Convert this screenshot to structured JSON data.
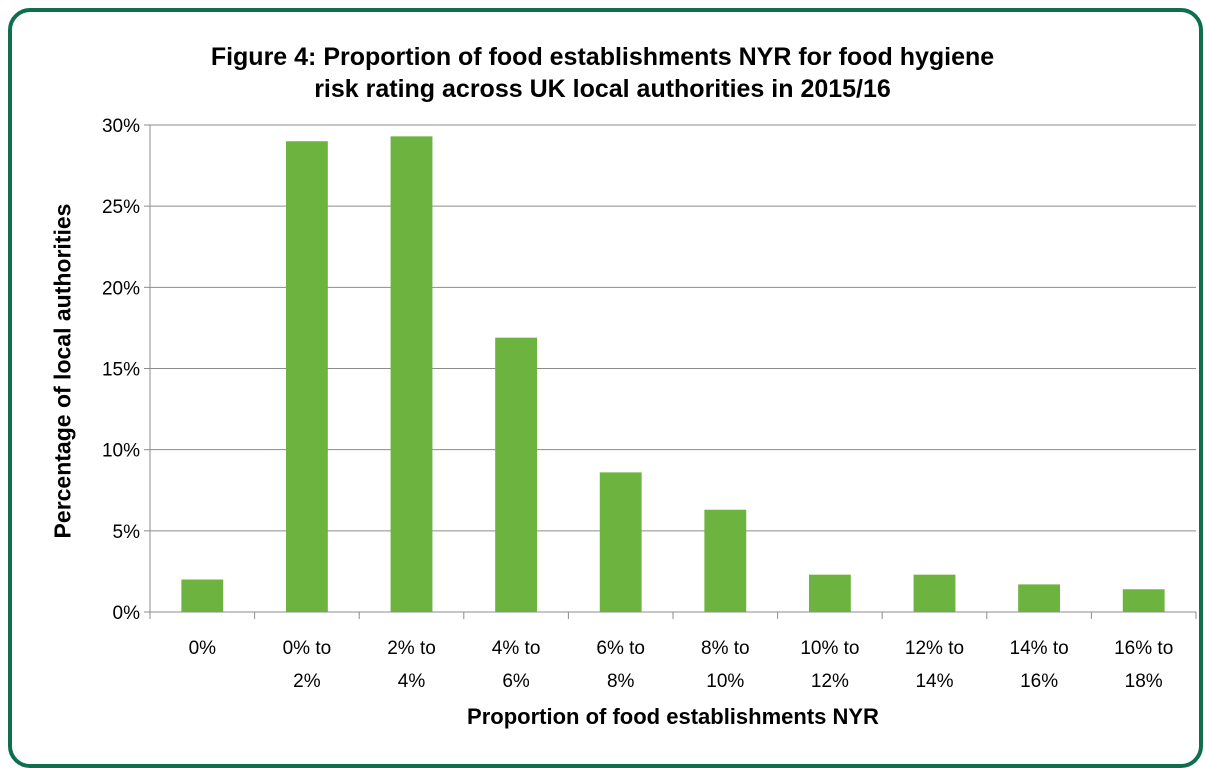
{
  "chart_data": {
    "type": "bar",
    "title_lines": [
      "Figure 4: Proportion of food establishments NYR for food hygiene",
      "risk rating across UK local authorities in 2015/16"
    ],
    "xlabel": "Proportion of food establishments NYR",
    "ylabel": "Percentage of  local  authorities",
    "categories": [
      [
        "0%"
      ],
      [
        "0% to",
        "2%"
      ],
      [
        "2% to",
        "4%"
      ],
      [
        "4% to",
        "6%"
      ],
      [
        "6% to",
        "8%"
      ],
      [
        "8% to",
        "10%"
      ],
      [
        "10% to",
        "12%"
      ],
      [
        "12% to",
        "14%"
      ],
      [
        "14% to",
        "16%"
      ],
      [
        "16% to",
        "18%"
      ]
    ],
    "values": [
      2.0,
      29.0,
      29.3,
      16.9,
      8.6,
      6.3,
      2.3,
      2.3,
      1.7,
      1.4
    ],
    "ylim": [
      0,
      30
    ],
    "yticks": [
      0,
      5,
      10,
      15,
      20,
      25,
      30
    ],
    "ytick_labels": [
      "0%",
      "5%",
      "10%",
      "15%",
      "20%",
      "25%",
      "30%"
    ],
    "grid": true,
    "bar_color": "#6db33f",
    "frame_color": "#0f6e4e"
  }
}
